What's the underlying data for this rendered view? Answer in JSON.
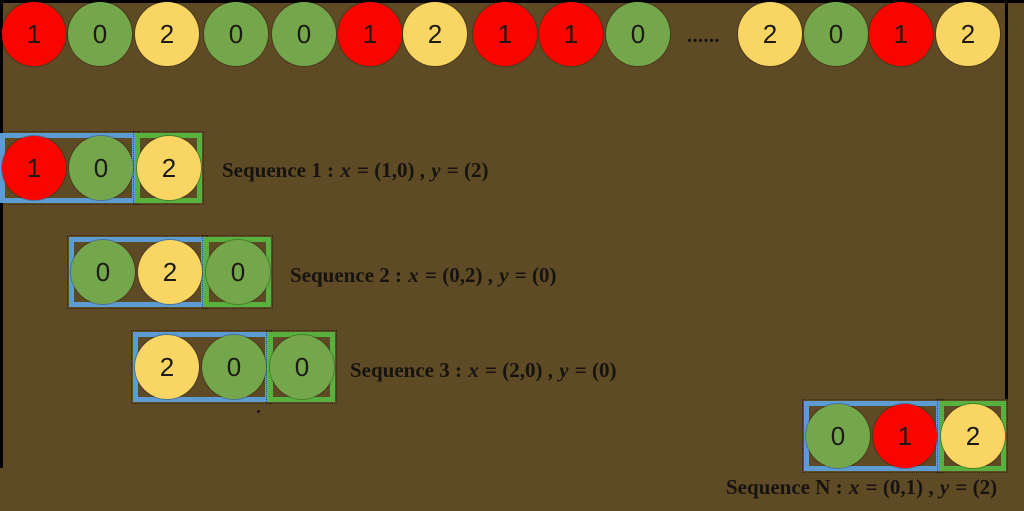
{
  "palette": {
    "background": "#5E4A24",
    "red_circle": "#FA0400",
    "green_circle": "#74A74C",
    "yellow_circle": "#F9D664",
    "blue_window": "#5D9BD3",
    "green_window": "#58B13E",
    "border_line": "#000000",
    "text": "#171310"
  },
  "top_row": {
    "tokens": [
      {
        "value": "1",
        "color": "red"
      },
      {
        "value": "0",
        "color": "green"
      },
      {
        "value": "2",
        "color": "yellow"
      },
      {
        "value": "0",
        "color": "green"
      },
      {
        "value": "0",
        "color": "green"
      },
      {
        "value": "1",
        "color": "red"
      },
      {
        "value": "2",
        "color": "yellow"
      },
      {
        "value": "1",
        "color": "red"
      },
      {
        "value": "1",
        "color": "red"
      },
      {
        "value": "0",
        "color": "green"
      },
      {
        "value": "2",
        "color": "yellow"
      },
      {
        "value": "0",
        "color": "green"
      },
      {
        "value": "1",
        "color": "red"
      },
      {
        "value": "2",
        "color": "yellow"
      }
    ],
    "ellipsis": "......"
  },
  "sequences": [
    {
      "name": "Sequence 1",
      "separator": " : ",
      "x_symbol": "x",
      "x_value": " = (1,0) , ",
      "y_symbol": "y",
      "y_value": " = (2)",
      "tokens": [
        {
          "value": "1",
          "color": "red"
        },
        {
          "value": "0",
          "color": "green"
        },
        {
          "value": "2",
          "color": "yellow"
        }
      ]
    },
    {
      "name": "Sequence 2",
      "separator": " : ",
      "x_symbol": "x",
      "x_value": " = (0,2) , ",
      "y_symbol": "y",
      "y_value": " = (0)",
      "tokens": [
        {
          "value": "0",
          "color": "green"
        },
        {
          "value": "2",
          "color": "yellow"
        },
        {
          "value": "0",
          "color": "green"
        }
      ]
    },
    {
      "name": "Sequence 3",
      "separator": " : ",
      "x_symbol": "x",
      "x_value": " = (2,0) , ",
      "y_symbol": "y",
      "y_value": " = (0)",
      "tokens": [
        {
          "value": "2",
          "color": "yellow"
        },
        {
          "value": "0",
          "color": "green"
        },
        {
          "value": "0",
          "color": "green"
        }
      ]
    },
    {
      "name": "Sequence N",
      "separator": " : ",
      "x_symbol": "x",
      "x_value": " = (0,1) , ",
      "y_symbol": "y",
      "y_value": " = (2)",
      "tokens": [
        {
          "value": "0",
          "color": "green"
        },
        {
          "value": "1",
          "color": "red"
        },
        {
          "value": "2",
          "color": "yellow"
        }
      ]
    }
  ]
}
